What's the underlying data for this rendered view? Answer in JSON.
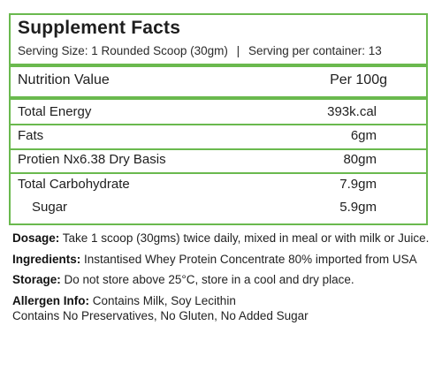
{
  "header": {
    "title": "Supplement Facts",
    "serving_size": "Serving Size: 1 Rounded Scoop (30gm)",
    "separator": "|",
    "servings_per_container": "Serving per container: 13"
  },
  "table": {
    "header_label": "Nutrition Value",
    "header_value": "Per 100g",
    "rows": [
      {
        "label": "Total Energy",
        "value": "393k.cal"
      },
      {
        "label": "Fats",
        "value": "6gm"
      },
      {
        "label": "Protien Nx6.38 Dry Basis",
        "value": "80gm"
      },
      {
        "label": "Total Carbohydrate",
        "value": "7.9gm"
      },
      {
        "label": "Sugar",
        "value": "5.9gm"
      }
    ]
  },
  "notes": {
    "dosage_label": "Dosage:",
    "dosage_text": " Take 1 scoop (30gms) twice daily, mixed in meal or with milk or Juice.",
    "ingredients_label": "Ingredients:",
    "ingredients_text": " Instantised Whey Protein Concentrate 80% imported from USA",
    "storage_label": "Storage:",
    "storage_text": " Do not store above 25°C, store in a cool and dry place.",
    "allergen_label": "Allergen Info:",
    "allergen_text": " Contains Milk, Soy Lecithin",
    "allergen_line2": "Contains No Preservatives, No Gluten, No Added Sugar"
  },
  "colors": {
    "border": "#6ab94e",
    "text": "#1e1e1e"
  }
}
